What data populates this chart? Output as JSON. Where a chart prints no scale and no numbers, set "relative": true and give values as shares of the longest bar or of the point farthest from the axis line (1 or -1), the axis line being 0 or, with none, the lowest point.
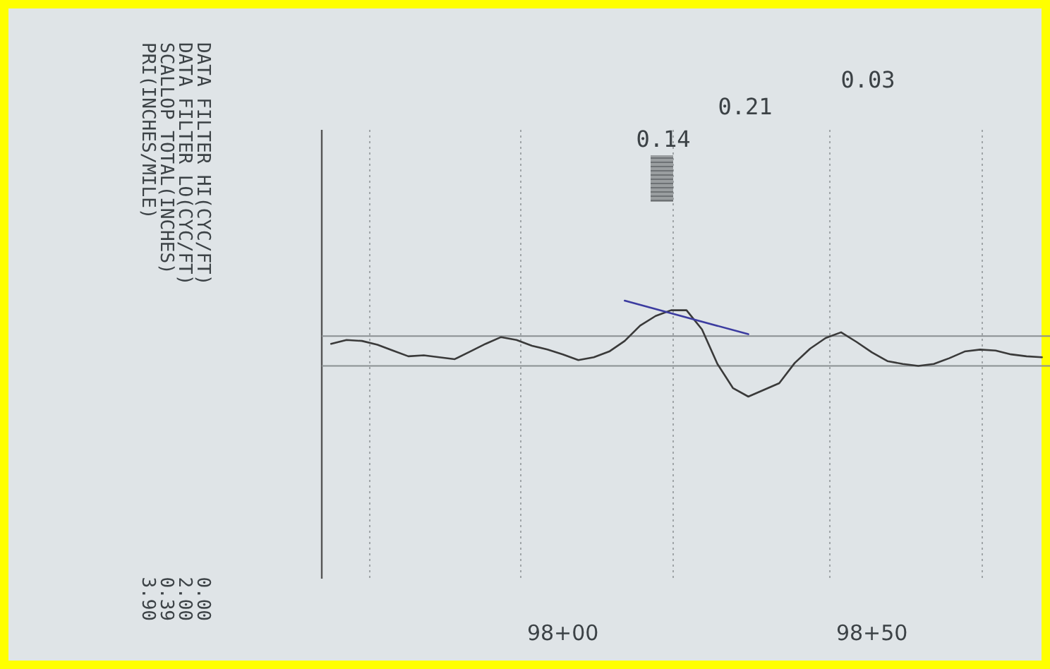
{
  "chart_data": {
    "type": "line",
    "relative": true,
    "categories": [
      null,
      null,
      null,
      null,
      null,
      null,
      null,
      null,
      null,
      null,
      null,
      null,
      null,
      null,
      null,
      "98+00",
      null,
      null,
      null,
      null,
      null,
      null,
      null,
      null,
      null,
      null,
      null,
      null,
      null,
      null,
      null,
      null,
      null,
      null,
      null,
      "98+50",
      null,
      null,
      null,
      null,
      null,
      null,
      null,
      null,
      null,
      null,
      null
    ],
    "series": [
      {
        "color": "#3a3a3a",
        "values": [
          0.55,
          0.59,
          0.58,
          0.54,
          0.48,
          0.42,
          0.43,
          0.41,
          0.39,
          0.47,
          0.55,
          0.62,
          0.59,
          0.53,
          0.49,
          0.44,
          0.38,
          0.41,
          0.47,
          0.58,
          0.74,
          0.84,
          0.9,
          0.9,
          0.7,
          0.34,
          0.09,
          0.0,
          0.07,
          0.14,
          0.35,
          0.5,
          0.61,
          0.67,
          0.57,
          0.46,
          0.37,
          0.34,
          0.32,
          0.34,
          0.4,
          0.47,
          0.49,
          0.48,
          0.44,
          0.42,
          0.41
        ]
      },
      {
        "type": "line",
        "color": "#3c3ca0",
        "values": [
          null,
          null,
          null,
          null,
          null,
          null,
          null,
          null,
          null,
          null,
          null,
          null,
          null,
          null,
          null,
          null,
          null,
          null,
          null,
          1.0,
          null,
          null,
          null,
          null,
          null,
          null,
          null,
          0.65,
          null,
          null,
          null,
          null,
          null,
          null,
          null,
          null,
          null,
          null,
          null,
          null,
          null,
          null,
          null,
          null,
          null,
          null,
          null
        ]
      }
    ],
    "ref_lines": [
      {
        "axis": "y",
        "value": 0.63,
        "color": "#8a8f92",
        "line_style": "solid"
      },
      {
        "axis": "y",
        "value": 0.32,
        "color": "#8a8f92",
        "line_style": "solid"
      }
    ],
    "annotations": [
      "DATA FILTER HI(CYC/FT)",
      "0.00",
      "DATA FILTER LO(CYC/FT)",
      "2.00",
      "SCALLOP TOTAL(INCHES)",
      "0.39",
      "PRI(INCHES/MILE)",
      "3.90",
      "0.14",
      "0.21",
      "0.03"
    ]
  }
}
